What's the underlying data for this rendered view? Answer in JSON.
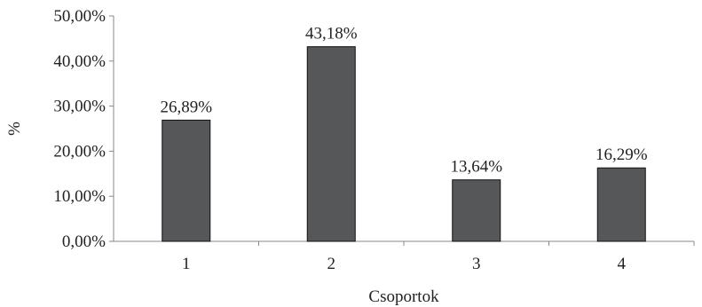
{
  "chart_data": {
    "type": "bar",
    "categories": [
      "1",
      "2",
      "3",
      "4"
    ],
    "values": [
      26.89,
      43.18,
      13.64,
      16.29
    ],
    "data_labels": [
      "26,89%",
      "43,18%",
      "13,64%",
      "16,29%"
    ],
    "xlabel": "Csoportok",
    "ylabel": "%",
    "ylim": [
      0,
      50
    ],
    "yticks": [
      0,
      10,
      20,
      30,
      40,
      50
    ],
    "ytick_labels": [
      "0,00%",
      "10,00%",
      "20,00%",
      "30,00%",
      "40,00%",
      "50,00%"
    ],
    "grid": false,
    "legend": "none",
    "colors": {
      "bar_fill": "#555759",
      "bar_stroke": "#111111",
      "axis": "#888888"
    }
  }
}
